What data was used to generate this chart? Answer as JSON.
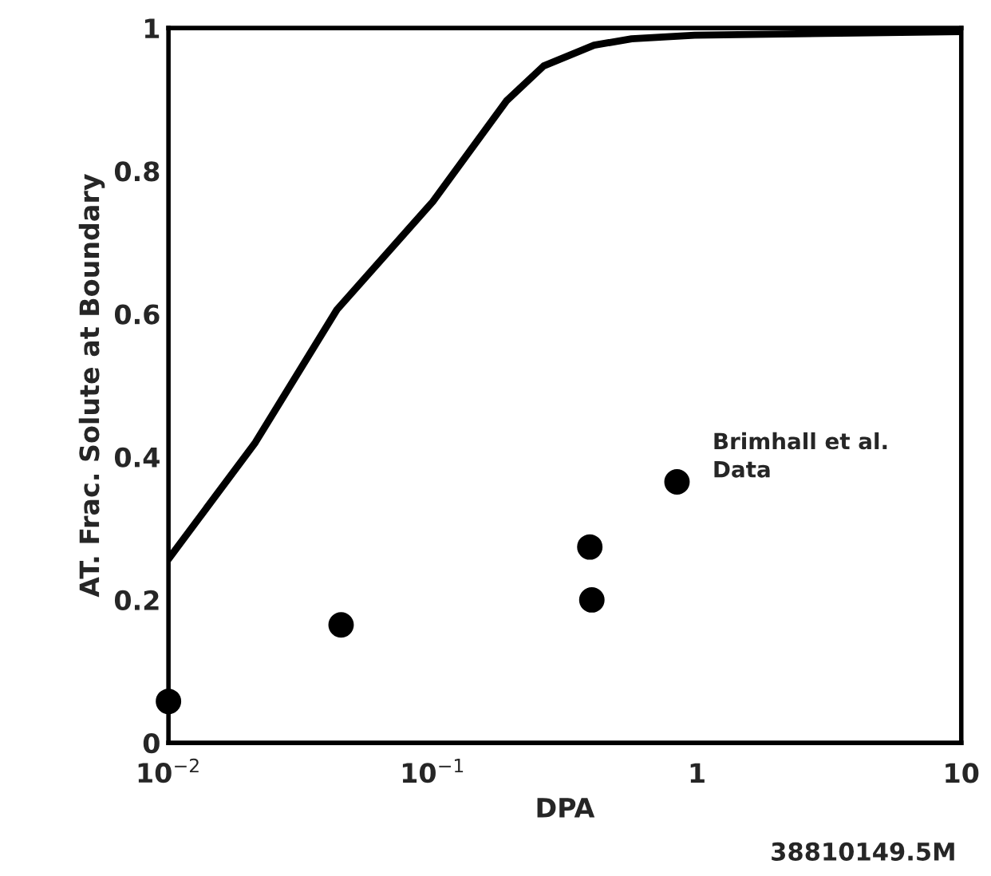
{
  "chart_data": {
    "type": "line",
    "xlabel": "DPA",
    "ylabel": "AT. Frac. Solute at Boundary",
    "log": "x",
    "xlim": [
      0.01,
      10
    ],
    "ylim": [
      0,
      1
    ],
    "xticks": [
      {
        "value": 0.01,
        "label": "10$^{−2}$"
      },
      {
        "value": 0.1,
        "label": "10$^{−1}$"
      },
      1,
      10
    ],
    "yticks": [
      0,
      0.2,
      0.4,
      0.6,
      0.8,
      1
    ],
    "grid": false,
    "legend": false,
    "series": [
      {
        "color": "#000000",
        "marker": "none",
        "line_style": "solid",
        "x": [
          0.01,
          0.0213,
          0.0434,
          0.1,
          0.19,
          0.263,
          0.408,
          0.566,
          0.98,
          10
        ],
        "values": [
          0.257,
          0.42,
          0.606,
          0.757,
          0.898,
          0.947,
          0.976,
          0.985,
          0.99,
          0.995
        ]
      },
      {
        "type": "scatter",
        "name": "Brimhall et al.\nData",
        "color": "#000000",
        "marker": "circle",
        "x": [
          0.01,
          0.045,
          0.393,
          0.4,
          0.84
        ],
        "values": [
          0.058,
          0.165,
          0.274,
          0.2,
          0.365
        ]
      }
    ],
    "annotations": [
      "38810149.5M"
    ]
  }
}
